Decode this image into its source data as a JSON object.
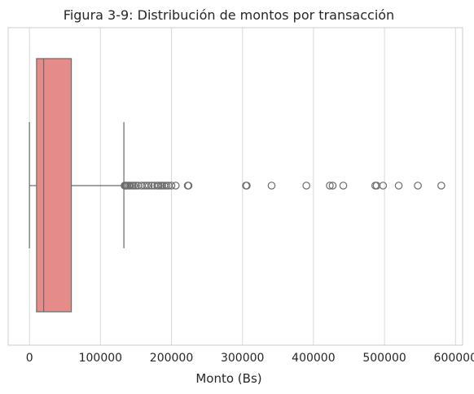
{
  "chart_data": {
    "type": "box",
    "title": "Figura 3-9: Distribución de montos por transacción",
    "xlabel": "Monto (Bs)",
    "ylabel": "",
    "orientation": "horizontal",
    "xlim": [
      -30000,
      610000
    ],
    "xticks": [
      0,
      100000,
      200000,
      300000,
      400000,
      500000,
      600000
    ],
    "xtick_labels": [
      "0",
      "100000",
      "200000",
      "300000",
      "400000",
      "500000",
      "600000"
    ],
    "grid": "vertical",
    "box": {
      "min": 0,
      "q1": 10000,
      "median": 20000,
      "q3": 59000,
      "whisker_high": 133000
    },
    "outliers": [
      134000,
      135000,
      136000,
      138000,
      140000,
      142000,
      145000,
      147000,
      150000,
      153000,
      158000,
      162000,
      165000,
      168000,
      172000,
      176000,
      180000,
      182000,
      185000,
      187000,
      190000,
      193000,
      196000,
      200000,
      206000,
      223000,
      224000,
      305000,
      306000,
      341000,
      390000,
      423000,
      427000,
      442000,
      487000,
      489000,
      498000,
      520000,
      547000,
      580000
    ],
    "colors": {
      "box_fill": "#E58C8A",
      "line": "#6b6b6b",
      "grid": "#d9d9d9",
      "frame": "#cccccc"
    }
  }
}
